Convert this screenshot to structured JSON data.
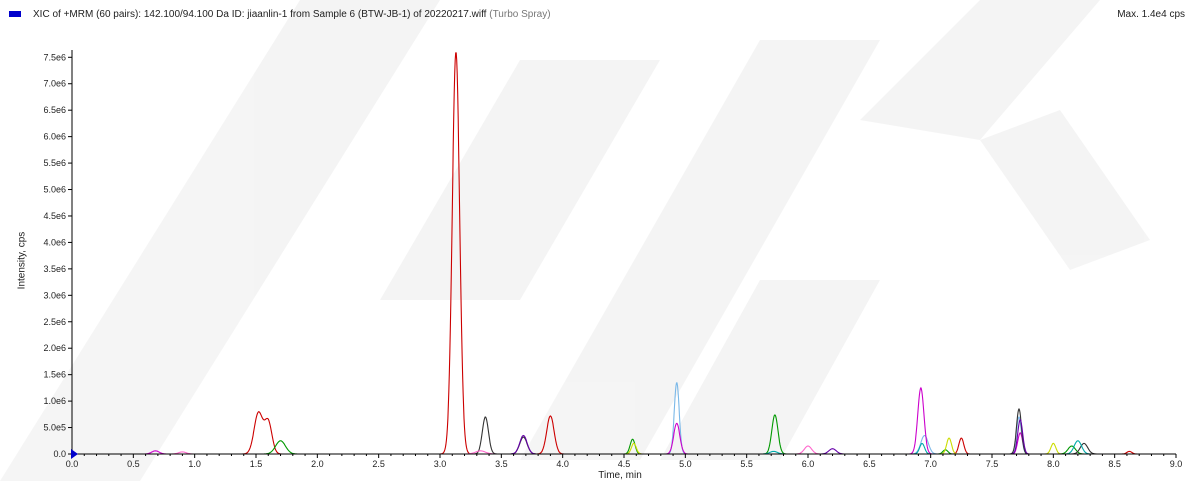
{
  "header": {
    "legend_color": "#0000cc",
    "title": "XIC of +MRM (60 pairs): 142.100/94.100 Da ID: jiaanlin-1 from Sample 6 (BTW-JB-1) of 20220217.wiff",
    "title_suffix": "(Turbo Spray)",
    "max_label": "Max. 1.4e4 cps"
  },
  "chart_data": {
    "type": "line",
    "xlabel": "Time, min",
    "ylabel": "Intensity, cps",
    "xlim": [
      0,
      9.0
    ],
    "ylim": [
      0,
      7600000
    ],
    "x_ticks": [
      "0.0",
      "0.5",
      "1.0",
      "1.5",
      "2.0",
      "2.5",
      "3.0",
      "3.5",
      "4.0",
      "4.5",
      "5.0",
      "5.5",
      "6.0",
      "6.5",
      "7.0",
      "7.5",
      "8.0",
      "8.5",
      "9.0"
    ],
    "y_ticks": [
      "0.0",
      "5.0e5",
      "1.0e6",
      "1.5e6",
      "2.0e6",
      "2.5e6",
      "3.0e6",
      "3.5e6",
      "4.0e6",
      "4.5e6",
      "5.0e6",
      "5.5e6",
      "6.0e6",
      "6.5e6",
      "7.0e6",
      "7.5e6"
    ],
    "grid": false,
    "series": [
      {
        "color": "#cc0000",
        "peaks": [
          [
            1.52,
            780000,
            0.035
          ],
          [
            1.6,
            600000,
            0.03
          ],
          [
            3.13,
            7600000,
            0.03
          ],
          [
            3.9,
            720000,
            0.03
          ],
          [
            7.25,
            300000,
            0.02
          ],
          [
            8.62,
            50000,
            0.02
          ]
        ]
      },
      {
        "color": "#009900",
        "peaks": [
          [
            1.7,
            250000,
            0.04
          ],
          [
            4.57,
            280000,
            0.02
          ],
          [
            5.73,
            740000,
            0.025
          ],
          [
            7.12,
            80000,
            0.02
          ],
          [
            8.15,
            150000,
            0.03
          ]
        ]
      },
      {
        "color": "#7ab8e8",
        "peaks": [
          [
            4.93,
            1350000,
            0.02
          ],
          [
            6.95,
            350000,
            0.03
          ],
          [
            7.72,
            700000,
            0.02
          ]
        ]
      },
      {
        "color": "#cc00cc",
        "peaks": [
          [
            0.68,
            60000,
            0.03
          ],
          [
            4.93,
            580000,
            0.025
          ],
          [
            6.92,
            1250000,
            0.025
          ],
          [
            7.73,
            400000,
            0.02
          ]
        ]
      },
      {
        "color": "#333333",
        "peaks": [
          [
            3.37,
            700000,
            0.025
          ],
          [
            3.68,
            320000,
            0.03
          ],
          [
            7.72,
            850000,
            0.02
          ],
          [
            8.25,
            200000,
            0.03
          ]
        ]
      },
      {
        "color": "#6600aa",
        "peaks": [
          [
            3.68,
            350000,
            0.03
          ],
          [
            6.2,
            100000,
            0.03
          ],
          [
            7.73,
            650000,
            0.02
          ]
        ]
      },
      {
        "color": "#ccdd00",
        "peaks": [
          [
            4.58,
            200000,
            0.02
          ],
          [
            7.15,
            300000,
            0.02
          ],
          [
            8.0,
            200000,
            0.02
          ]
        ]
      },
      {
        "color": "#ff66cc",
        "peaks": [
          [
            0.9,
            40000,
            0.03
          ],
          [
            3.33,
            60000,
            0.04
          ],
          [
            6.0,
            150000,
            0.03
          ]
        ]
      },
      {
        "color": "#00aaaa",
        "peaks": [
          [
            5.72,
            50000,
            0.03
          ],
          [
            6.93,
            200000,
            0.02
          ],
          [
            8.2,
            250000,
            0.03
          ]
        ]
      }
    ]
  }
}
